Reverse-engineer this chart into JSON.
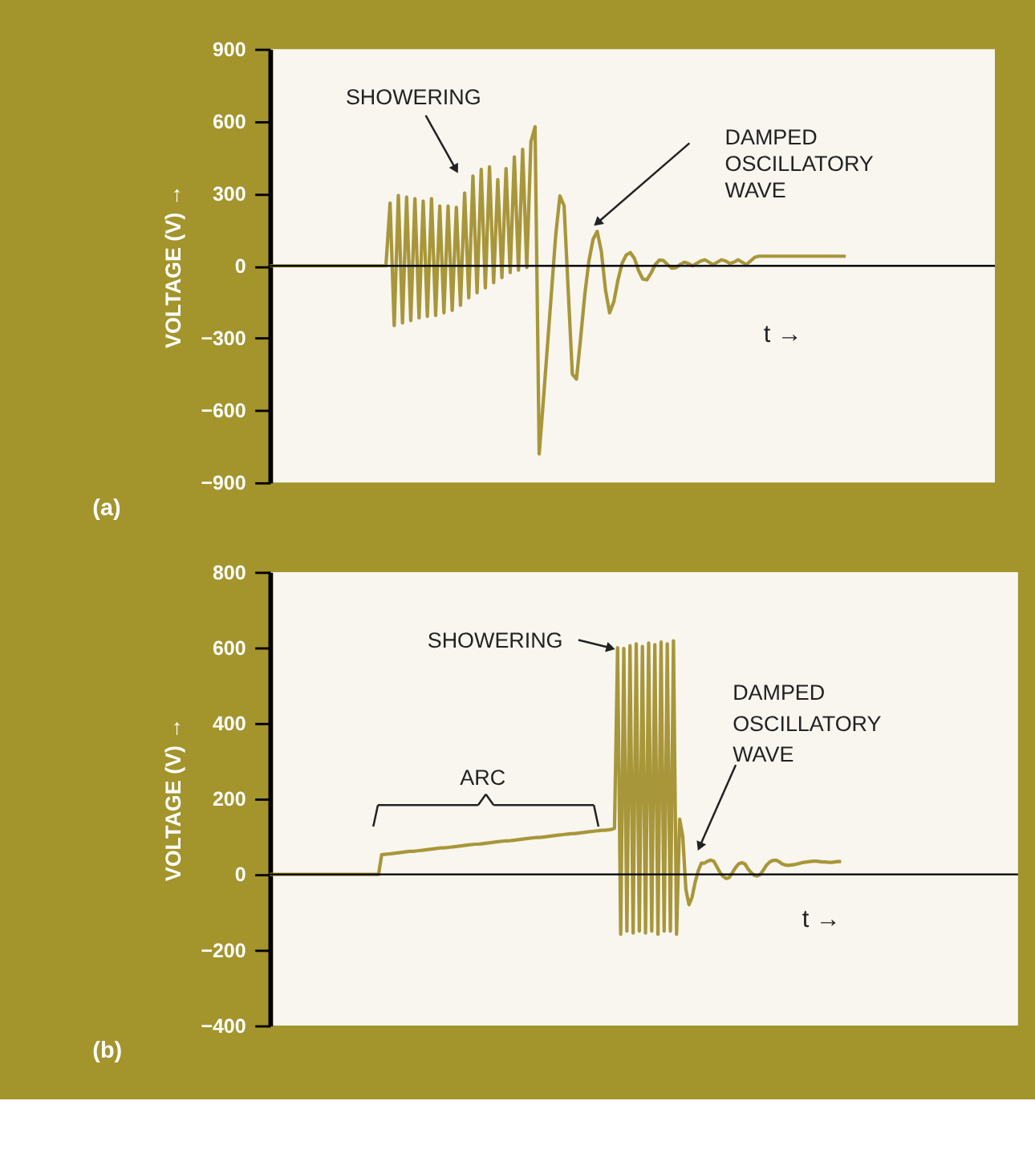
{
  "chart_data": [
    {
      "type": "line",
      "title": "(a)",
      "xlabel": "t →",
      "ylabel": "VOLTAGE (V) →",
      "annotations": [
        "SHOWERING",
        "DAMPED OSCILLATORY WAVE"
      ],
      "categories": [
        null,
        null,
        null,
        null,
        null,
        null,
        null,
        null,
        null,
        null,
        null,
        null,
        null,
        null,
        null,
        null,
        null,
        null,
        null,
        null,
        null,
        null,
        null,
        null,
        null,
        null,
        null,
        null,
        null,
        null,
        null,
        null,
        null,
        null,
        null,
        null,
        null,
        null,
        null,
        null,
        null,
        null,
        null,
        null,
        null,
        null,
        null,
        null,
        null,
        null,
        null,
        null,
        null,
        null,
        null,
        null,
        null,
        null,
        null,
        null,
        null,
        null,
        null,
        null,
        null,
        null,
        null,
        null,
        null,
        null,
        null,
        null,
        null,
        null,
        null,
        null,
        null,
        null,
        null,
        null,
        null,
        null,
        null,
        null,
        null,
        null,
        null,
        null,
        null,
        null,
        null,
        null,
        null,
        null,
        null,
        null,
        null,
        null,
        null,
        null,
        null,
        null,
        null,
        null,
        null,
        null,
        null,
        null,
        null,
        null,
        null,
        null,
        null,
        null,
        null,
        null,
        null,
        null,
        null,
        null,
        null,
        null,
        null,
        null,
        null,
        null,
        null,
        null,
        null,
        null,
        null,
        null,
        null,
        null,
        null,
        null,
        null,
        null,
        null,
        null,
        null,
        null,
        null,
        null,
        null,
        null,
        null,
        null,
        null,
        null,
        null,
        null,
        null,
        null,
        null,
        null,
        null,
        null,
        null,
        null,
        null,
        null,
        null,
        null,
        null,
        null,
        null,
        null,
        null,
        null,
        null,
        null,
        null,
        null,
        null,
        null
      ],
      "series": [
        {
          "color": "#a8963a",
          "values": [
            0,
            0,
            0,
            0,
            0,
            0,
            0,
            0,
            0,
            0,
            0,
            0,
            0,
            0,
            0,
            0,
            0,
            0,
            0,
            0,
            0,
            0,
            0,
            0,
            0,
            0,
            0,
            0,
            0,
            260,
            -248,
            292,
            -237,
            285,
            -227,
            279,
            -216,
            269,
            -210,
            279,
            -206,
            248,
            -195,
            248,
            -185,
            243,
            -164,
            302,
            -133,
            373,
            -112,
            400,
            -91,
            411,
            -70,
            358,
            -49,
            404,
            -28,
            452,
            -18,
            484,
            -7,
            515,
            578,
            -781,
            -560,
            -330,
            -100,
            130,
            290,
            250,
            -100,
            -450,
            -470,
            -300,
            -120,
            20,
            110,
            143,
            60,
            -100,
            -195,
            -150,
            -60,
            10,
            45,
            55,
            30,
            -20,
            -55,
            -58,
            -30,
            5,
            24,
            22,
            5,
            -10,
            -8,
            5,
            15,
            10,
            0,
            10,
            20,
            25,
            15,
            5,
            15,
            25,
            20,
            10,
            15,
            25,
            15,
            5,
            20,
            35,
            40,
            40,
            40,
            40,
            40,
            40,
            40,
            40,
            40,
            40,
            40,
            40,
            40,
            40,
            40,
            40,
            40,
            40,
            40,
            40,
            40,
            40,
            null,
            null,
            null,
            null,
            null,
            null,
            null,
            null,
            null,
            null,
            null,
            null,
            null,
            null,
            null,
            null,
            null,
            null,
            null,
            null,
            null,
            null,
            null,
            null,
            null,
            null,
            null,
            null,
            null,
            null,
            null,
            null,
            null,
            null,
            null,
            null
          ]
        }
      ],
      "ylim": [
        -900,
        900
      ],
      "yticks": [
        -900,
        -600,
        -300,
        0,
        300,
        600,
        900
      ],
      "tick_labels": "y",
      "grid": false,
      "ref_lines": [
        {
          "axis": "y",
          "value": 0,
          "color": "#000000"
        }
      ]
    },
    {
      "type": "line",
      "title": "(b)",
      "xlabel": "t →",
      "ylabel": "VOLTAGE (V) →",
      "annotations": [
        "SHOWERING",
        "ARC",
        "DAMPED OSCILLATORY WAVE"
      ],
      "categories": [
        null,
        null,
        null,
        null,
        null,
        null,
        null,
        null,
        null,
        null,
        null,
        null,
        null,
        null,
        null,
        null,
        null,
        null,
        null,
        null,
        null,
        null,
        null,
        null,
        null,
        null,
        null,
        null,
        null,
        null,
        null,
        null,
        null,
        null,
        null,
        null,
        null,
        null,
        null,
        null,
        null,
        null,
        null,
        null,
        null,
        null,
        null,
        null,
        null,
        null,
        null,
        null,
        null,
        null,
        null,
        null,
        null,
        null,
        null,
        null,
        null,
        null,
        null,
        null,
        null,
        null,
        null,
        null,
        null,
        null,
        null,
        null,
        null,
        null,
        null,
        null,
        null,
        null,
        null,
        null,
        null,
        null,
        null,
        null,
        null,
        null,
        null,
        null,
        null,
        null,
        null,
        null,
        null,
        null,
        null,
        null,
        null,
        null,
        null,
        null,
        null,
        null,
        null,
        null,
        null,
        null,
        null,
        null,
        null,
        null,
        null,
        null,
        null,
        null,
        null,
        null,
        null,
        null,
        null,
        null,
        null,
        null,
        null,
        null,
        null,
        null,
        null,
        null,
        null,
        null,
        null,
        null,
        null,
        null,
        null,
        null,
        null,
        null,
        null,
        null,
        null,
        null,
        null,
        null,
        null,
        null,
        null,
        null,
        null,
        null,
        null,
        null,
        null,
        null,
        null,
        null,
        null,
        null,
        null,
        null,
        null,
        null,
        null,
        null,
        null,
        null,
        null,
        null,
        null,
        null,
        null,
        null,
        null,
        null,
        null,
        null,
        null,
        null,
        null,
        null,
        null,
        null,
        null,
        null,
        null,
        null,
        null,
        null,
        null,
        null,
        null,
        null,
        null,
        null,
        null,
        null,
        null,
        null,
        null,
        null,
        null,
        null,
        null,
        null,
        null,
        null,
        null,
        null,
        null,
        null,
        null,
        null,
        null,
        null,
        null,
        null,
        null,
        null,
        null,
        null,
        null,
        null,
        null,
        null,
        null,
        null,
        null,
        null,
        null,
        null,
        null,
        null,
        null,
        null,
        null,
        null,
        null,
        null,
        null,
        null,
        null,
        null
      ],
      "series": [
        {
          "color": "#a8963a",
          "values": [
            0,
            0,
            0,
            0,
            0,
            0,
            0,
            0,
            0,
            0,
            0,
            0,
            0,
            0,
            0,
            0,
            0,
            0,
            0,
            0,
            0,
            0,
            0,
            0,
            0,
            0,
            0,
            0,
            0,
            0,
            0,
            0,
            0,
            0,
            0,
            0,
            52,
            53,
            54,
            55,
            56,
            57,
            58,
            59,
            60,
            61,
            61,
            62,
            63,
            64,
            65,
            66,
            67,
            68,
            69,
            70,
            70,
            71,
            72,
            73,
            74,
            75,
            76,
            77,
            78,
            79,
            80,
            80,
            81,
            82,
            83,
            84,
            85,
            86,
            87,
            88,
            89,
            89,
            90,
            91,
            92,
            93,
            94,
            95,
            96,
            97,
            98,
            98,
            99,
            100,
            101,
            102,
            103,
            104,
            105,
            106,
            107,
            108,
            108,
            109,
            110,
            111,
            112,
            113,
            114,
            115,
            116,
            117,
            117,
            118,
            119,
            122,
            600,
            -158,
            598,
            -150,
            605,
            -155,
            610,
            -150,
            603,
            -155,
            612,
            -150,
            608,
            -158,
            615,
            -150,
            610,
            -150,
            618,
            -158,
            146,
            100,
            -40,
            -80,
            -60,
            -20,
            10,
            30,
            30,
            35,
            38,
            35,
            20,
            5,
            -5,
            -11,
            -8,
            5,
            18,
            28,
            31,
            28,
            15,
            5,
            -2,
            -4,
            0,
            12,
            25,
            33,
            37,
            38,
            34,
            28,
            25,
            24,
            25,
            26,
            28,
            30,
            32,
            33,
            34,
            35,
            35,
            34,
            33,
            33,
            32,
            32,
            33,
            34,
            34,
            null,
            null,
            null,
            null,
            null,
            null,
            null,
            null,
            null,
            null,
            null,
            null,
            null,
            null,
            null,
            null,
            null,
            null,
            null,
            null,
            null,
            null,
            null,
            null,
            null,
            null,
            null,
            null,
            null,
            null,
            null,
            null,
            null,
            null,
            null,
            null,
            null,
            null,
            null,
            null,
            null,
            null,
            null,
            null,
            null,
            null,
            null,
            null,
            null,
            null,
            null,
            null,
            null,
            null,
            null,
            null,
            null
          ]
        }
      ],
      "ylim": [
        -400,
        800
      ],
      "yticks": [
        -400,
        -200,
        0,
        200,
        400,
        600,
        800
      ],
      "tick_labels": "y",
      "grid": false,
      "ref_lines": [
        {
          "axis": "y",
          "value": 0,
          "color": "#000000"
        }
      ]
    }
  ]
}
